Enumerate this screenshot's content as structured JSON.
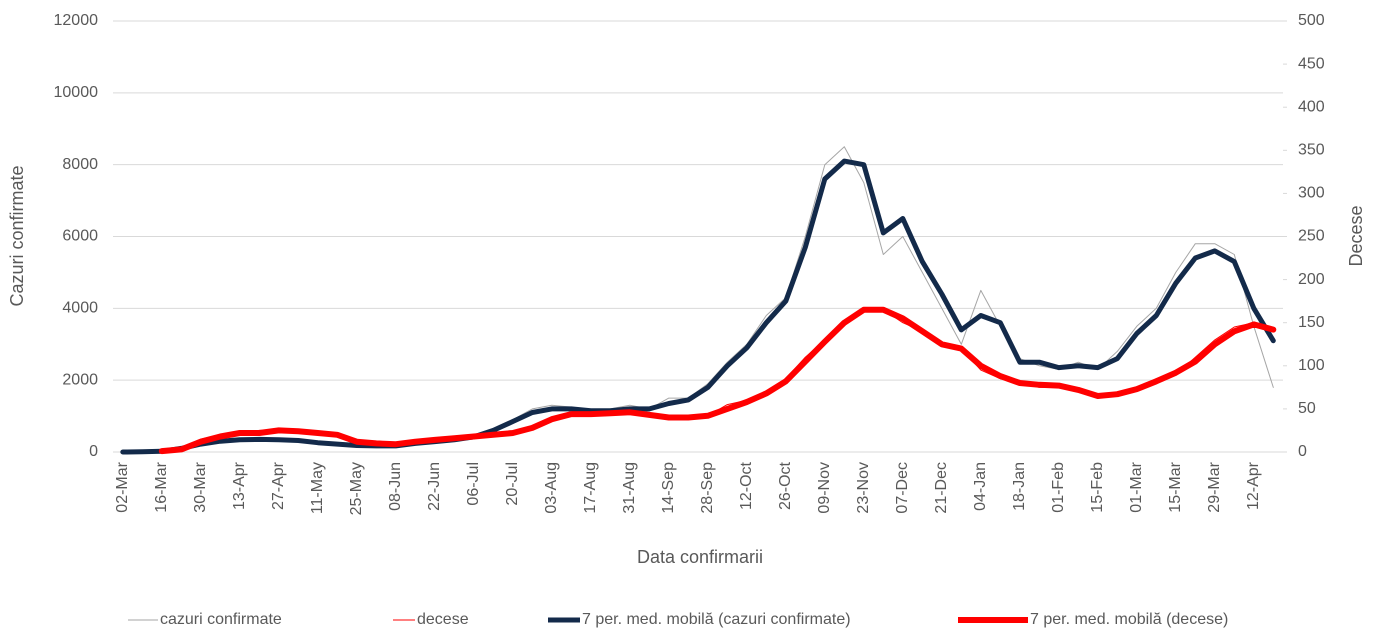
{
  "chart_data": {
    "type": "line",
    "x_label": "Data confirmarii",
    "y_label": "Cazuri confirmate",
    "y2_label": "Decese",
    "categories": [
      "02-Mar",
      null,
      "16-Mar",
      null,
      "30-Mar",
      null,
      "13-Apr",
      null,
      "27-Apr",
      null,
      "11-May",
      null,
      "25-May",
      null,
      "08-Jun",
      null,
      "22-Jun",
      null,
      "06-Jul",
      null,
      "20-Jul",
      null,
      "03-Aug",
      null,
      "17-Aug",
      null,
      "31-Aug",
      null,
      "14-Sep",
      null,
      "28-Sep",
      null,
      "12-Oct",
      null,
      "26-Oct",
      null,
      "09-Nov",
      null,
      "23-Nov",
      null,
      "07-Dec",
      null,
      "21-Dec",
      null,
      "04-Jan",
      null,
      "18-Jan",
      null,
      "01-Feb",
      null,
      "15-Feb",
      null,
      "01-Mar",
      null,
      "15-Mar",
      null,
      "29-Mar",
      null,
      "12-Apr",
      null
    ],
    "ylim": [
      0,
      12000
    ],
    "yticks": [
      0,
      2000,
      4000,
      6000,
      8000,
      10000,
      12000
    ],
    "y2lim": [
      0,
      500
    ],
    "y2ticks": [
      0,
      50,
      100,
      150,
      200,
      250,
      300,
      350,
      400,
      450,
      500
    ],
    "grid": true,
    "legend": "bottom",
    "series": [
      {
        "name": "cazuri confirmate",
        "color": "#a6a6a6",
        "width": 1,
        "values": [
          0,
          5,
          30,
          150,
          300,
          350,
          380,
          350,
          380,
          300,
          250,
          200,
          180,
          170,
          180,
          250,
          300,
          350,
          450,
          650,
          900,
          1200,
          1300,
          1250,
          1100,
          1200,
          1300,
          1200,
          1500,
          1500,
          1900,
          2500,
          3000,
          3800,
          4300,
          6000,
          8000,
          8500,
          7500,
          5500,
          6000,
          5000,
          4000,
          3000,
          4500,
          3500,
          2600,
          2400,
          2300,
          2500,
          2300,
          2800,
          3500,
          4000,
          5000,
          5800,
          5800,
          5500,
          3500,
          1800
        ]
      },
      {
        "name": "decese",
        "color": "#ff0000",
        "width": 1,
        "axis": "y2",
        "values": [
          null,
          null,
          1,
          5,
          15,
          20,
          22,
          25,
          25,
          22,
          22,
          18,
          12,
          10,
          9,
          12,
          15,
          16,
          18,
          20,
          22,
          28,
          40,
          45,
          42,
          45,
          46,
          42,
          40,
          40,
          42,
          55,
          60,
          70,
          85,
          110,
          130,
          150,
          165,
          165,
          150,
          140,
          125,
          120,
          95,
          85,
          80,
          75,
          75,
          70,
          65,
          65,
          75,
          85,
          90,
          110,
          130,
          145,
          150,
          140
        ]
      },
      {
        "name": "7 per. med. mobilă (cazuri confirmate)",
        "color": "#132a4a",
        "width": 5,
        "values": [
          0,
          5,
          20,
          100,
          220,
          300,
          340,
          350,
          340,
          320,
          260,
          220,
          180,
          170,
          170,
          240,
          290,
          340,
          420,
          600,
          850,
          1100,
          1200,
          1200,
          1150,
          1150,
          1200,
          1200,
          1350,
          1450,
          1800,
          2400,
          2900,
          3600,
          4200,
          5700,
          7600,
          8100,
          8000,
          6100,
          6500,
          5300,
          4400,
          3400,
          3800,
          3600,
          2500,
          2500,
          2350,
          2400,
          2350,
          2600,
          3300,
          3800,
          4700,
          5400,
          5600,
          5300,
          4000,
          3100
        ]
      },
      {
        "name": "7 per. med. mobilă (decese)",
        "color": "#ff0000",
        "width": 6,
        "axis": "y2",
        "values": [
          null,
          null,
          1,
          3,
          12,
          18,
          22,
          22,
          25,
          24,
          22,
          20,
          12,
          10,
          9,
          12,
          14,
          16,
          18,
          20,
          22,
          28,
          38,
          44,
          44,
          45,
          46,
          43,
          40,
          40,
          42,
          50,
          58,
          68,
          82,
          105,
          128,
          150,
          165,
          165,
          155,
          140,
          125,
          120,
          100,
          88,
          80,
          78,
          77,
          72,
          65,
          67,
          73,
          82,
          92,
          105,
          125,
          140,
          148,
          142
        ]
      }
    ]
  }
}
